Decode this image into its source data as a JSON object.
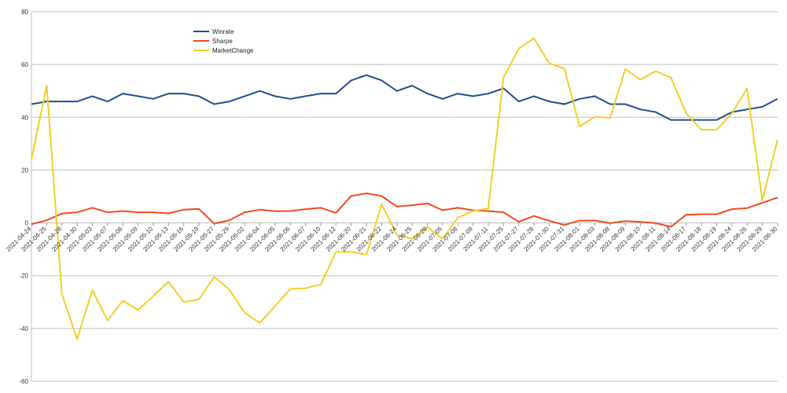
{
  "chart_data": {
    "type": "line",
    "title": "",
    "xlabel": "",
    "ylabel": "",
    "ylim": [
      -60,
      80
    ],
    "yticks": [
      -60,
      -40,
      -20,
      0,
      20,
      40,
      60,
      80
    ],
    "grid": true,
    "legend_position": "top-left",
    "categories": [
      "2021-04-24",
      "2021-04-25",
      "2021-04-28",
      "2021-04-30",
      "2021-05-03",
      "2021-05-07",
      "2021-05-08",
      "2021-05-09",
      "2021-05-10",
      "2021-05-13",
      "2021-05-16",
      "2021-05-19",
      "2021-05-27",
      "2021-05-29",
      "2021-06-02",
      "2021-06-04",
      "2021-06-05",
      "2021-06-06",
      "2021-06-07",
      "2021-06-10",
      "2021-06-12",
      "2021-06-20",
      "2021-06-21",
      "2021-06-22",
      "2021-06-24",
      "2021-06-25",
      "2021-06-28",
      "2021-07-05",
      "2021-07-08",
      "2021-07-09",
      "2021-07-11",
      "2021-07-25",
      "2021-07-27",
      "2021-07-28",
      "2021-07-30",
      "2021-07-31",
      "2021-08-01",
      "2021-08-03",
      "2021-08-08",
      "2021-08-09",
      "2021-08-10",
      "2021-08-11",
      "2021-08-14",
      "2021-08-17",
      "2021-08-18",
      "2021-08-19",
      "2021-08-24",
      "2021-08-26",
      "2021-08-29",
      "2021-08-30"
    ],
    "series": [
      {
        "name": "Winrate",
        "color": "#1f4e8c",
        "values": [
          45,
          46,
          46,
          46,
          48,
          46,
          49,
          48,
          47,
          49,
          49,
          48,
          45,
          46,
          48,
          50,
          48,
          47,
          48,
          49,
          49,
          54,
          56,
          54,
          50,
          52,
          49,
          47,
          49,
          48,
          49,
          51,
          46,
          48,
          46,
          45,
          47,
          48,
          45,
          45,
          43,
          42,
          39,
          39,
          39,
          39,
          42,
          43,
          44,
          47
        ]
      },
      {
        "name": "Sharpe",
        "color": "#ee4b1a",
        "values": [
          -0.5,
          1,
          3.5,
          4,
          5.7,
          4,
          4.5,
          4,
          4,
          3.6,
          5,
          5.3,
          -0.3,
          1,
          4,
          5,
          4.4,
          4.5,
          5.2,
          5.7,
          3.8,
          10.2,
          11.2,
          10.2,
          6.2,
          6.7,
          7.4,
          4.8,
          5.7,
          4.8,
          4.5,
          4,
          0.4,
          2.6,
          0.8,
          -0.8,
          0.9,
          0.9,
          -0.1,
          0.7,
          0.4,
          -0.1,
          -1.5,
          3.1,
          3.3,
          3.3,
          5.2,
          5.6,
          7.6,
          9.6
        ]
      },
      {
        "name": "MarketChange",
        "color": "#f2cf28",
        "values": [
          24,
          52,
          -27,
          -44,
          -25.5,
          -37,
          -29.5,
          -33,
          -27.7,
          -22.3,
          -30,
          -29,
          -20.5,
          -25.3,
          -34,
          -38,
          -31.5,
          -25,
          -24.8,
          -23.3,
          -11,
          -11,
          -12,
          7,
          -4.5,
          -6,
          -1.5,
          -6,
          2,
          4.5,
          5.5,
          55,
          66,
          70,
          60.5,
          58.5,
          36.5,
          40.2,
          39.8,
          58.3,
          54.3,
          57.5,
          55,
          41.5,
          35.3,
          35.3,
          41.5,
          51,
          8.5,
          31.5
        ]
      }
    ]
  }
}
